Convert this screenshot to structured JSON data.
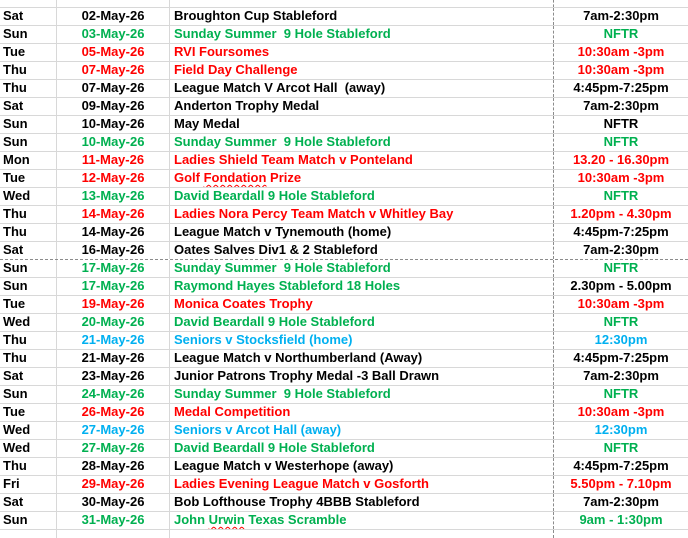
{
  "colors": {
    "black": "#000000",
    "red": "#FF0000",
    "green": "#00B050",
    "blue": "#00B0F0",
    "gridline": "#D8D8D8",
    "dashed_line": "#8C8C8C"
  },
  "rows": [
    {
      "day": "Sat",
      "date": "02-May-26",
      "event": "Broughton Cup Stableford",
      "time": "7am-2:30pm",
      "color": "black"
    },
    {
      "day": "Sun",
      "date": "03-May-26",
      "event": "Sunday Summer  9 Hole Stableford",
      "time": "NFTR",
      "color": "green"
    },
    {
      "day": "Tue",
      "date": "05-May-26",
      "event": "RVI Foursomes",
      "time": "10:30am -3pm",
      "color": "red"
    },
    {
      "day": "Thu",
      "date": "07-May-26",
      "event": "Field Day Challenge",
      "time": "10:30am -3pm",
      "color": "red"
    },
    {
      "day": "Thu",
      "date": "07-May-26",
      "event": "League Match V Arcot Hall  (away)",
      "time": "4:45pm-7:25pm",
      "color": "black"
    },
    {
      "day": "Sat",
      "date": "09-May-26",
      "event": "Anderton Trophy Medal",
      "time": "7am-2:30pm",
      "color": "black"
    },
    {
      "day": "Sun",
      "date": "10-May-26",
      "event": "May Medal",
      "time": "NFTR",
      "color": "black"
    },
    {
      "day": "Sun",
      "date": "10-May-26",
      "event": "Sunday Summer  9 Hole Stableford",
      "time": "NFTR",
      "color": "green"
    },
    {
      "day": "Mon",
      "date": "11-May-26",
      "event": "Ladies Shield Team Match v Ponteland",
      "time": "13.20 - 16.30pm",
      "color": "red"
    },
    {
      "day": "Tue",
      "date": "12-May-26",
      "event": "Golf Fondation Prize",
      "time": "10:30am -3pm",
      "color": "red",
      "misspell": "Fondation"
    },
    {
      "day": "Wed",
      "date": "13-May-26",
      "event": "David Beardall 9 Hole Stableford",
      "time": "NFTR",
      "color": "green"
    },
    {
      "day": "Thu",
      "date": "14-May-26",
      "event": "Ladies Nora Percy Team Match v Whitley Bay",
      "time": "1.20pm - 4.30pm",
      "color": "red"
    },
    {
      "day": "Thu",
      "date": "14-May-26",
      "event": "League Match v Tynemouth (home)",
      "time": "4:45pm-7:25pm",
      "color": "black"
    },
    {
      "day": "Sat",
      "date": "16-May-26",
      "event": "Oates Salves Div1 & 2 Stableford",
      "time": "7am-2:30pm",
      "color": "black",
      "page_break_after": true
    },
    {
      "day": "Sun",
      "date": "17-May-26",
      "event": "Sunday Summer  9 Hole Stableford",
      "time": "NFTR",
      "color": "green"
    },
    {
      "day": "Sun",
      "date": "17-May-26",
      "event": "Raymond Hayes Stableford 18 Holes",
      "time": "2.30pm - 5.00pm",
      "color": "green",
      "time_color": "black"
    },
    {
      "day": "Tue",
      "date": "19-May-26",
      "event": "Monica Coates Trophy",
      "time": "10:30am -3pm",
      "color": "red"
    },
    {
      "day": "Wed",
      "date": "20-May-26",
      "event": "David Beardall 9 Hole Stableford",
      "time": "NFTR",
      "color": "green"
    },
    {
      "day": "Thu",
      "date": "21-May-26",
      "event": "Seniors v Stocksfield (home)",
      "time": "12:30pm",
      "color": "blue"
    },
    {
      "day": "Thu",
      "date": "21-May-26",
      "event": "League Match v Northumberland (Away)",
      "time": "4:45pm-7:25pm",
      "color": "black"
    },
    {
      "day": "Sat",
      "date": "23-May-26",
      "event": "Junior Patrons Trophy Medal -3 Ball Drawn",
      "time": "7am-2:30pm",
      "color": "black"
    },
    {
      "day": "Sun",
      "date": "24-May-26",
      "event": "Sunday Summer  9 Hole Stableford",
      "time": "NFTR",
      "color": "green"
    },
    {
      "day": "Tue",
      "date": "26-May-26",
      "event": "Medal Competition",
      "time": "10:30am -3pm",
      "color": "red"
    },
    {
      "day": "Wed",
      "date": "27-May-26",
      "event": "Seniors v Arcot Hall (away)",
      "time": "12:30pm",
      "color": "blue"
    },
    {
      "day": "Wed",
      "date": "27-May-26",
      "event": "David Beardall 9 Hole Stableford",
      "time": "NFTR",
      "color": "green"
    },
    {
      "day": "Thu",
      "date": "28-May-26",
      "event": "League Match v Westerhope (away)",
      "time": "4:45pm-7:25pm",
      "color": "black"
    },
    {
      "day": "Fri",
      "date": "29-May-26",
      "event": "Ladies Evening League Match v Gosforth",
      "time": "5.50pm - 7.10pm",
      "color": "red"
    },
    {
      "day": "Sat",
      "date": "30-May-26",
      "event": "Bob Lofthouse Trophy 4BBB Stableford",
      "time": "7am-2:30pm",
      "color": "black"
    },
    {
      "day": "Sun",
      "date": "31-May-26",
      "event": "John Urwin Texas Scramble",
      "time": "9am - 1:30pm",
      "color": "green",
      "misspell": "Urwin"
    }
  ]
}
